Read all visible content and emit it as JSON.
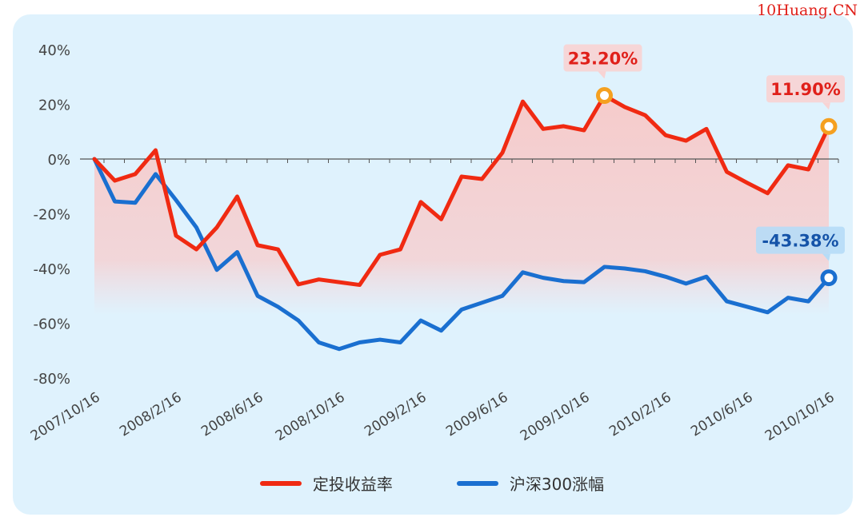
{
  "watermark": "10Huang.CN",
  "chart_data": {
    "type": "line",
    "title": "",
    "xlabel": "",
    "ylabel": "",
    "ylim": [
      -80,
      40
    ],
    "y_ticks": [
      40,
      20,
      0,
      -20,
      -40,
      -60,
      -80
    ],
    "y_tick_labels": [
      "40%",
      "20%",
      "0%",
      "-20%",
      "-40%",
      "-60%",
      "-80%"
    ],
    "x_tick_labels": [
      "2007/10/16",
      "2008/2/16",
      "2008/6/16",
      "2008/10/16",
      "2009/2/16",
      "2009/6/16",
      "2009/10/16",
      "2010/2/16",
      "2010/6/16",
      "2010/10/16"
    ],
    "x_tick_interval_months": 4,
    "x_start": "2007/10/16",
    "grid": false,
    "legend_position": "bottom",
    "series": [
      {
        "name": "定投收益率",
        "color": "#f02a12",
        "area_fill": true,
        "values": [
          0,
          -7.9,
          -5.5,
          3.2,
          -28,
          -33,
          -25,
          -13.7,
          -31.5,
          -33,
          -45.8,
          -44,
          -45,
          -46,
          -35,
          -33,
          -15.7,
          -22,
          -6.4,
          -7.3,
          2.3,
          21,
          11,
          12,
          10.5,
          23.2,
          19,
          16,
          8.7,
          6.7,
          11,
          -4.7,
          -8.7,
          -12.5,
          -2.3,
          -3.8,
          11.9
        ]
      },
      {
        "name": "沪深300涨幅",
        "color": "#1a6fd0",
        "area_fill": false,
        "values": [
          0,
          -15.5,
          -16,
          -5.5,
          -15,
          -25,
          -40.5,
          -34,
          -50,
          -54,
          -59,
          -67,
          -69.4,
          -67,
          -66,
          -67,
          -59,
          -62.7,
          -55,
          -52.5,
          -50,
          -41.4,
          -43.4,
          -44.6,
          -45,
          -39.4,
          -40,
          -41,
          -43,
          -45.5,
          -43,
          -52,
          -54,
          -56,
          -50.7,
          -52,
          -43.38
        ]
      }
    ],
    "annotations": [
      {
        "series": 0,
        "index": 25,
        "text": "23.20%",
        "marker_color": "#f5a020",
        "box_color": "#f8d3d3",
        "text_color": "#e0201a"
      },
      {
        "series": 0,
        "index": 36,
        "text": "11.90%",
        "marker_color": "#f5a020",
        "box_color": "#f8d3d3",
        "text_color": "#e0201a"
      },
      {
        "series": 1,
        "index": 36,
        "text": "-43.38%",
        "marker_color": "#1a6fd0",
        "box_color": "#b6dcf7",
        "text_color": "#1553a8"
      }
    ]
  }
}
